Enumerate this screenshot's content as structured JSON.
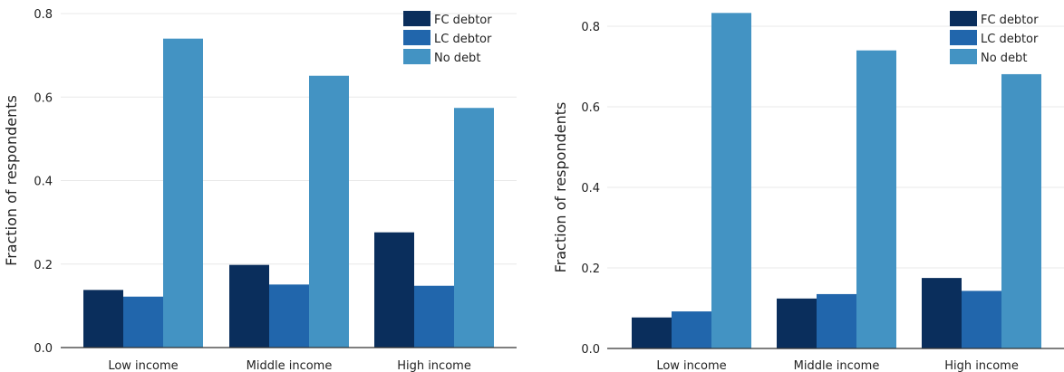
{
  "chart_data": [
    {
      "type": "bar",
      "categories": [
        "Low income",
        "Middle income",
        "High income"
      ],
      "series": [
        {
          "name": "FC debtor",
          "values": [
            0.138,
            0.198,
            0.276
          ]
        },
        {
          "name": "LC debtor",
          "values": [
            0.122,
            0.151,
            0.148
          ]
        },
        {
          "name": "No debt",
          "values": [
            0.74,
            0.651,
            0.574
          ]
        }
      ],
      "yticks": [
        "0.0",
        "0.2",
        "0.4",
        "0.6",
        "0.8"
      ],
      "ylabel": "Fraction of respondents",
      "xlabel": "",
      "ylim": [
        0,
        0.8
      ],
      "grid": "horizontal",
      "legend": "top-right",
      "colors": [
        "#0a2e5c",
        "#2166ac",
        "#4393c3"
      ]
    },
    {
      "type": "bar",
      "categories": [
        "Low income",
        "Middle income",
        "High income"
      ],
      "series": [
        {
          "name": "FC debtor",
          "values": [
            0.077,
            0.124,
            0.175
          ]
        },
        {
          "name": "LC debtor",
          "values": [
            0.092,
            0.135,
            0.143
          ]
        },
        {
          "name": "No debt",
          "values": [
            0.833,
            0.74,
            0.681
          ]
        }
      ],
      "yticks": [
        "0.0",
        "0.2",
        "0.4",
        "0.6",
        "0.8"
      ],
      "ylabel": "Fraction of respondents",
      "xlabel": "",
      "ylim": [
        0,
        0.8
      ],
      "grid": "horizontal",
      "legend": "top-right",
      "colors": [
        "#0a2e5c",
        "#2166ac",
        "#4393c3"
      ]
    }
  ]
}
